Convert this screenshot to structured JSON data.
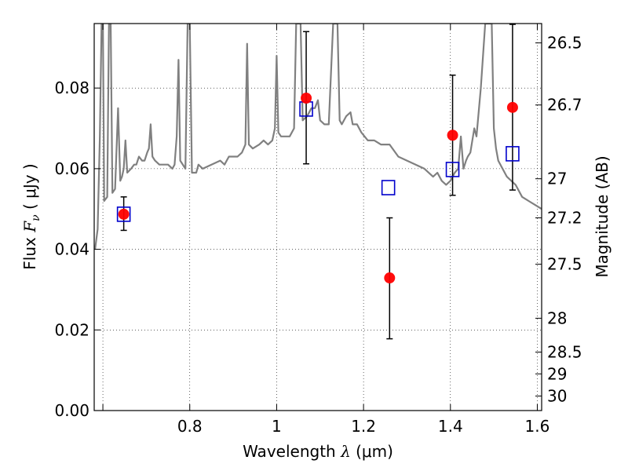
{
  "chart_data": {
    "type": "scatter",
    "xlabel_prefix": "Wavelength",
    "xlabel_symbol": "λ",
    "xlabel_unit": "(μm)",
    "ylabel_prefix": "Flux",
    "ylabel_symbol": "F",
    "ylabel_sub": "ν",
    "ylabel_unit": "( μJy )",
    "y2label": "Magnitude (AB)",
    "xlim": [
      0.58,
      1.61
    ],
    "ylim": [
      0.0,
      0.096
    ],
    "grid": true,
    "xticks": [
      0.6,
      0.8,
      1.0,
      1.2,
      1.4,
      1.6
    ],
    "xtick_labels": [
      "",
      "0.8",
      "1",
      "1.2",
      "1.4",
      "1.6"
    ],
    "yticks": [
      0.0,
      0.02,
      0.04,
      0.06,
      0.08
    ],
    "ytick_labels": [
      "0.00",
      "0.02",
      "0.04",
      "0.06",
      "0.08"
    ],
    "y2ticks": [
      {
        "label": "26.5",
        "flux": 0.0912
      },
      {
        "label": "26.7",
        "flux": 0.0758
      },
      {
        "label": "27",
        "flux": 0.0575
      },
      {
        "label": "27.2",
        "flux": 0.0478
      },
      {
        "label": "27.5",
        "flux": 0.0363
      },
      {
        "label": "28",
        "flux": 0.0229
      },
      {
        "label": "28.5",
        "flux": 0.0145
      },
      {
        "label": "29",
        "flux": 0.0091
      },
      {
        "label": "30",
        "flux": 0.0036
      }
    ],
    "colors": {
      "spectrum": "#808080",
      "observed": "#ff0000",
      "model": "#0000cc",
      "errorbar": "#000000"
    },
    "observed": [
      {
        "x": 0.648,
        "y": 0.0487,
        "err_lo": 0.0447,
        "err_hi": 0.053
      },
      {
        "x": 1.068,
        "y": 0.0775,
        "err_lo": 0.0612,
        "err_hi": 0.094
      },
      {
        "x": 1.26,
        "y": 0.0329,
        "err_lo": 0.0178,
        "err_hi": 0.0478
      },
      {
        "x": 1.405,
        "y": 0.0683,
        "err_lo": 0.0534,
        "err_hi": 0.0832
      },
      {
        "x": 1.543,
        "y": 0.0752,
        "err_lo": 0.0547,
        "err_hi": 0.0958
      }
    ],
    "model": [
      {
        "x": 0.648,
        "y": 0.0487
      },
      {
        "x": 1.068,
        "y": 0.0748
      },
      {
        "x": 1.257,
        "y": 0.0553
      },
      {
        "x": 1.405,
        "y": 0.0598
      },
      {
        "x": 1.543,
        "y": 0.0637
      }
    ],
    "spectrum": [
      [
        0.582,
        0.04
      ],
      [
        0.588,
        0.045
      ],
      [
        0.593,
        0.068
      ],
      [
        0.597,
        0.096
      ],
      [
        0.6,
        0.096
      ],
      [
        0.603,
        0.052
      ],
      [
        0.61,
        0.053
      ],
      [
        0.614,
        0.096
      ],
      [
        0.618,
        0.096
      ],
      [
        0.622,
        0.054
      ],
      [
        0.628,
        0.055
      ],
      [
        0.635,
        0.075
      ],
      [
        0.64,
        0.057
      ],
      [
        0.644,
        0.058
      ],
      [
        0.648,
        0.06
      ],
      [
        0.652,
        0.067
      ],
      [
        0.656,
        0.059
      ],
      [
        0.665,
        0.06
      ],
      [
        0.672,
        0.061
      ],
      [
        0.677,
        0.061
      ],
      [
        0.683,
        0.063
      ],
      [
        0.69,
        0.062
      ],
      [
        0.696,
        0.062
      ],
      [
        0.702,
        0.064
      ],
      [
        0.706,
        0.065
      ],
      [
        0.71,
        0.071
      ],
      [
        0.714,
        0.063
      ],
      [
        0.72,
        0.062
      ],
      [
        0.73,
        0.061
      ],
      [
        0.74,
        0.061
      ],
      [
        0.75,
        0.061
      ],
      [
        0.76,
        0.06
      ],
      [
        0.765,
        0.061
      ],
      [
        0.77,
        0.068
      ],
      [
        0.774,
        0.087
      ],
      [
        0.778,
        0.062
      ],
      [
        0.79,
        0.06
      ],
      [
        0.795,
        0.096
      ],
      [
        0.8,
        0.096
      ],
      [
        0.805,
        0.059
      ],
      [
        0.815,
        0.059
      ],
      [
        0.82,
        0.061
      ],
      [
        0.83,
        0.06
      ],
      [
        0.85,
        0.061
      ],
      [
        0.87,
        0.062
      ],
      [
        0.88,
        0.061
      ],
      [
        0.89,
        0.063
      ],
      [
        0.9,
        0.063
      ],
      [
        0.91,
        0.063
      ],
      [
        0.92,
        0.064
      ],
      [
        0.928,
        0.066
      ],
      [
        0.932,
        0.091
      ],
      [
        0.936,
        0.066
      ],
      [
        0.945,
        0.065
      ],
      [
        0.96,
        0.066
      ],
      [
        0.97,
        0.067
      ],
      [
        0.98,
        0.066
      ],
      [
        0.99,
        0.067
      ],
      [
        0.996,
        0.07
      ],
      [
        1.0,
        0.088
      ],
      [
        1.004,
        0.069
      ],
      [
        1.01,
        0.068
      ],
      [
        1.03,
        0.068
      ],
      [
        1.04,
        0.07
      ],
      [
        1.045,
        0.096
      ],
      [
        1.055,
        0.096
      ],
      [
        1.06,
        0.072
      ],
      [
        1.07,
        0.073
      ],
      [
        1.08,
        0.075
      ],
      [
        1.088,
        0.075
      ],
      [
        1.095,
        0.077
      ],
      [
        1.1,
        0.072
      ],
      [
        1.11,
        0.071
      ],
      [
        1.12,
        0.071
      ],
      [
        1.13,
        0.096
      ],
      [
        1.14,
        0.096
      ],
      [
        1.145,
        0.072
      ],
      [
        1.15,
        0.071
      ],
      [
        1.16,
        0.073
      ],
      [
        1.17,
        0.074
      ],
      [
        1.175,
        0.071
      ],
      [
        1.185,
        0.071
      ],
      [
        1.195,
        0.069
      ],
      [
        1.21,
        0.067
      ],
      [
        1.225,
        0.067
      ],
      [
        1.24,
        0.066
      ],
      [
        1.26,
        0.066
      ],
      [
        1.28,
        0.063
      ],
      [
        1.3,
        0.062
      ],
      [
        1.32,
        0.061
      ],
      [
        1.34,
        0.06
      ],
      [
        1.36,
        0.058
      ],
      [
        1.37,
        0.059
      ],
      [
        1.38,
        0.057
      ],
      [
        1.39,
        0.056
      ],
      [
        1.4,
        0.057
      ],
      [
        1.41,
        0.059
      ],
      [
        1.418,
        0.06
      ],
      [
        1.424,
        0.068
      ],
      [
        1.43,
        0.06
      ],
      [
        1.436,
        0.062
      ],
      [
        1.44,
        0.063
      ],
      [
        1.446,
        0.064
      ],
      [
        1.455,
        0.07
      ],
      [
        1.46,
        0.068
      ],
      [
        1.47,
        0.08
      ],
      [
        1.48,
        0.096
      ],
      [
        1.495,
        0.096
      ],
      [
        1.5,
        0.07
      ],
      [
        1.505,
        0.065
      ],
      [
        1.51,
        0.062
      ],
      [
        1.52,
        0.06
      ],
      [
        1.53,
        0.058
      ],
      [
        1.54,
        0.057
      ],
      [
        1.55,
        0.056
      ],
      [
        1.565,
        0.053
      ],
      [
        1.58,
        0.052
      ],
      [
        1.595,
        0.051
      ],
      [
        1.61,
        0.05
      ]
    ]
  }
}
